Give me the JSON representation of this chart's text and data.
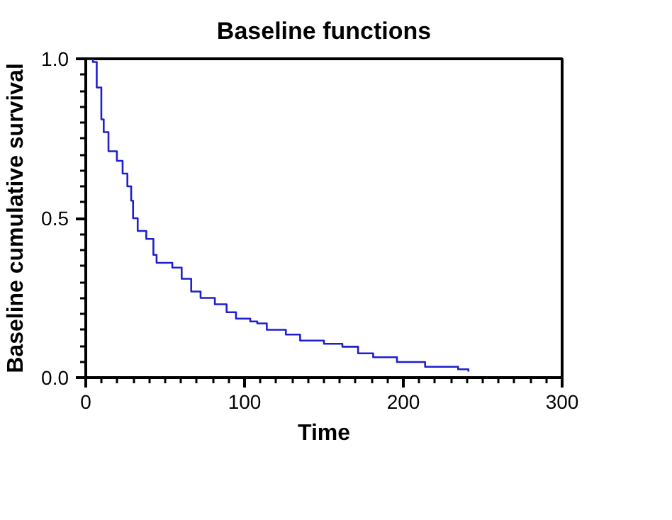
{
  "chart_data": {
    "type": "step",
    "title": "Baseline functions",
    "xlabel": "Time",
    "ylabel": "Baseline cumulative survival",
    "x": [
      0,
      4.5,
      6.9,
      9.8,
      11.3,
      14.3,
      19.6,
      23.2,
      26.2,
      28.6,
      29.8,
      32.7,
      38.1,
      42.6,
      44.6,
      54.5,
      60.4,
      66.4,
      72.3,
      81.3,
      88.7,
      94.6,
      103.6,
      108,
      114,
      126,
      135,
      150,
      161.6,
      171.5,
      181,
      196,
      213.7,
      234.5,
      241
    ],
    "series": [
      {
        "color": "#1f1fd0",
        "values": [
          1.0,
          0.99,
          0.91,
          0.81,
          0.77,
          0.71,
          0.68,
          0.64,
          0.6,
          0.555,
          0.5,
          0.46,
          0.435,
          0.385,
          0.36,
          0.345,
          0.31,
          0.27,
          0.25,
          0.23,
          0.205,
          0.185,
          0.176,
          0.17,
          0.15,
          0.135,
          0.116,
          0.106,
          0.097,
          0.076,
          0.064,
          0.049,
          0.034,
          0.026,
          0.019
        ]
      }
    ],
    "xlim": [
      0,
      300
    ],
    "ylim": [
      0,
      1
    ],
    "xticks": [
      0,
      100,
      200,
      300
    ],
    "yticks": [
      {
        "value": 0,
        "label": "0.0"
      },
      {
        "value": 0.5,
        "label": "0.5"
      },
      {
        "value": 1,
        "label": "1.0"
      }
    ],
    "grid": false
  }
}
